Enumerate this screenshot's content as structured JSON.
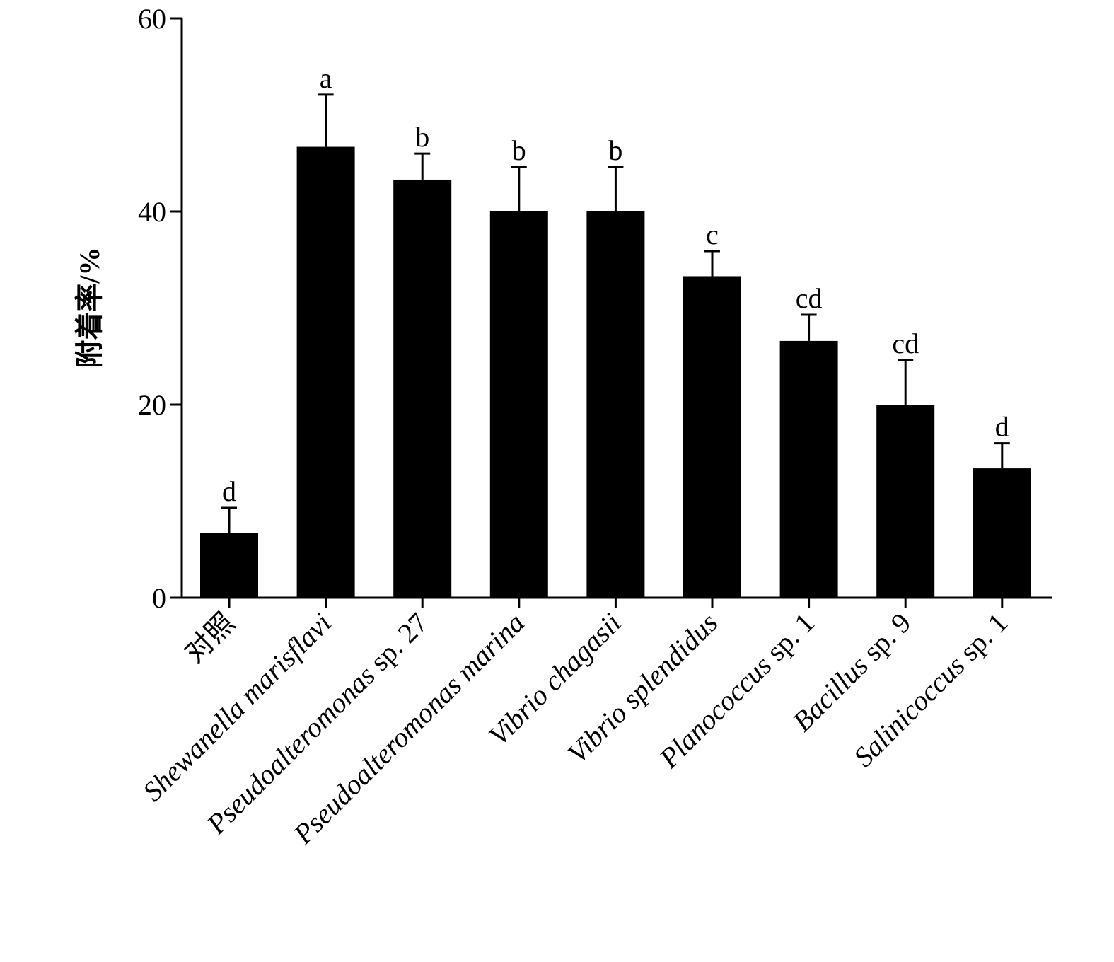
{
  "chart_data": {
    "type": "bar",
    "ylabel": "附着率/%",
    "xlabel": "",
    "ylim": [
      0,
      60
    ],
    "yticks": [
      0,
      20,
      40,
      60
    ],
    "grid": false,
    "legend": "none",
    "bar_color": "#000000",
    "categories": [
      {
        "text": "对照",
        "italic": false
      },
      {
        "text": "Shewanella marisflavi",
        "italic": true
      },
      {
        "text": "Pseudoalteromonas",
        "italic": true,
        "suffix": " sp. 27"
      },
      {
        "text": "Pseudoalteromonas marina",
        "italic": true
      },
      {
        "text": "Vibrio chagasii",
        "italic": true
      },
      {
        "text": "Vibrio splendidus",
        "italic": true
      },
      {
        "text": "Planococcus",
        "italic": true,
        "suffix": " sp. 1"
      },
      {
        "text": "Bacillus",
        "italic": true,
        "suffix": " sp. 9"
      },
      {
        "text": "Salinicoccus",
        "italic": true,
        "suffix": " sp. 1"
      }
    ],
    "values": [
      6.7,
      46.7,
      43.3,
      40.0,
      40.0,
      33.3,
      26.6,
      20.0,
      13.4
    ],
    "errors": [
      2.6,
      5.4,
      2.7,
      4.6,
      4.6,
      2.6,
      2.7,
      4.6,
      2.6
    ],
    "significance": [
      "d",
      "a",
      "b",
      "b",
      "b",
      "c",
      "cd",
      "cd",
      "d"
    ]
  }
}
